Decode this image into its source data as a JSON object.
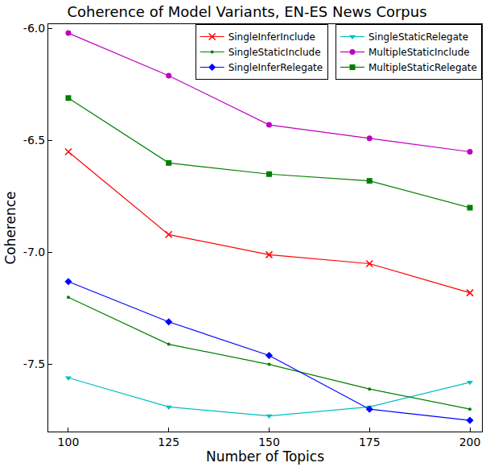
{
  "chart_data": {
    "type": "line",
    "title": "Coherence of Model Variants, EN-ES News Corpus",
    "x_label": "Number of Topics",
    "y_label": "Coherence",
    "x": [
      100,
      125,
      150,
      175,
      200
    ],
    "series": [
      {
        "name": "SingleInferInclude",
        "color": "#ff0000",
        "marker": "x",
        "values": [
          -6.55,
          -6.92,
          -7.01,
          -7.05,
          -7.18
        ]
      },
      {
        "name": "SingleStaticRelegate",
        "color": "#00bfbf",
        "marker": "triangle-down",
        "values": [
          -7.56,
          -7.69,
          -7.73,
          -7.69,
          -7.58
        ]
      },
      {
        "name": "SingleStaticInclude",
        "color": "#008000",
        "marker": "point",
        "values": [
          -7.2,
          -7.41,
          -7.5,
          -7.61,
          -7.7
        ]
      },
      {
        "name": "MultipleStaticInclude",
        "color": "#bf00bf",
        "marker": "circle",
        "values": [
          -6.02,
          -6.21,
          -6.43,
          -6.49,
          -6.55
        ]
      },
      {
        "name": "SingleInferRelegate",
        "color": "#0000ff",
        "marker": "diamond",
        "values": [
          -7.13,
          -7.31,
          -7.46,
          -7.7,
          -7.75
        ]
      },
      {
        "name": "MultipleStaticRelegate",
        "color": "#008000",
        "marker": "square",
        "values": [
          -6.31,
          -6.6,
          -6.65,
          -6.68,
          -6.8
        ]
      }
    ],
    "xlim": [
      95,
      203
    ],
    "xticks": [
      100,
      125,
      150,
      175,
      200
    ],
    "ylim": [
      -7.8,
      -5.98
    ],
    "yticks": [
      {
        "value": -6,
        "label": "-6.0"
      },
      {
        "value": -6.5,
        "label": "-6.5"
      },
      {
        "value": -7,
        "label": "-7.0"
      },
      {
        "value": -7.5,
        "label": "-7.5"
      }
    ],
    "grid": false,
    "legend": "upper right"
  }
}
